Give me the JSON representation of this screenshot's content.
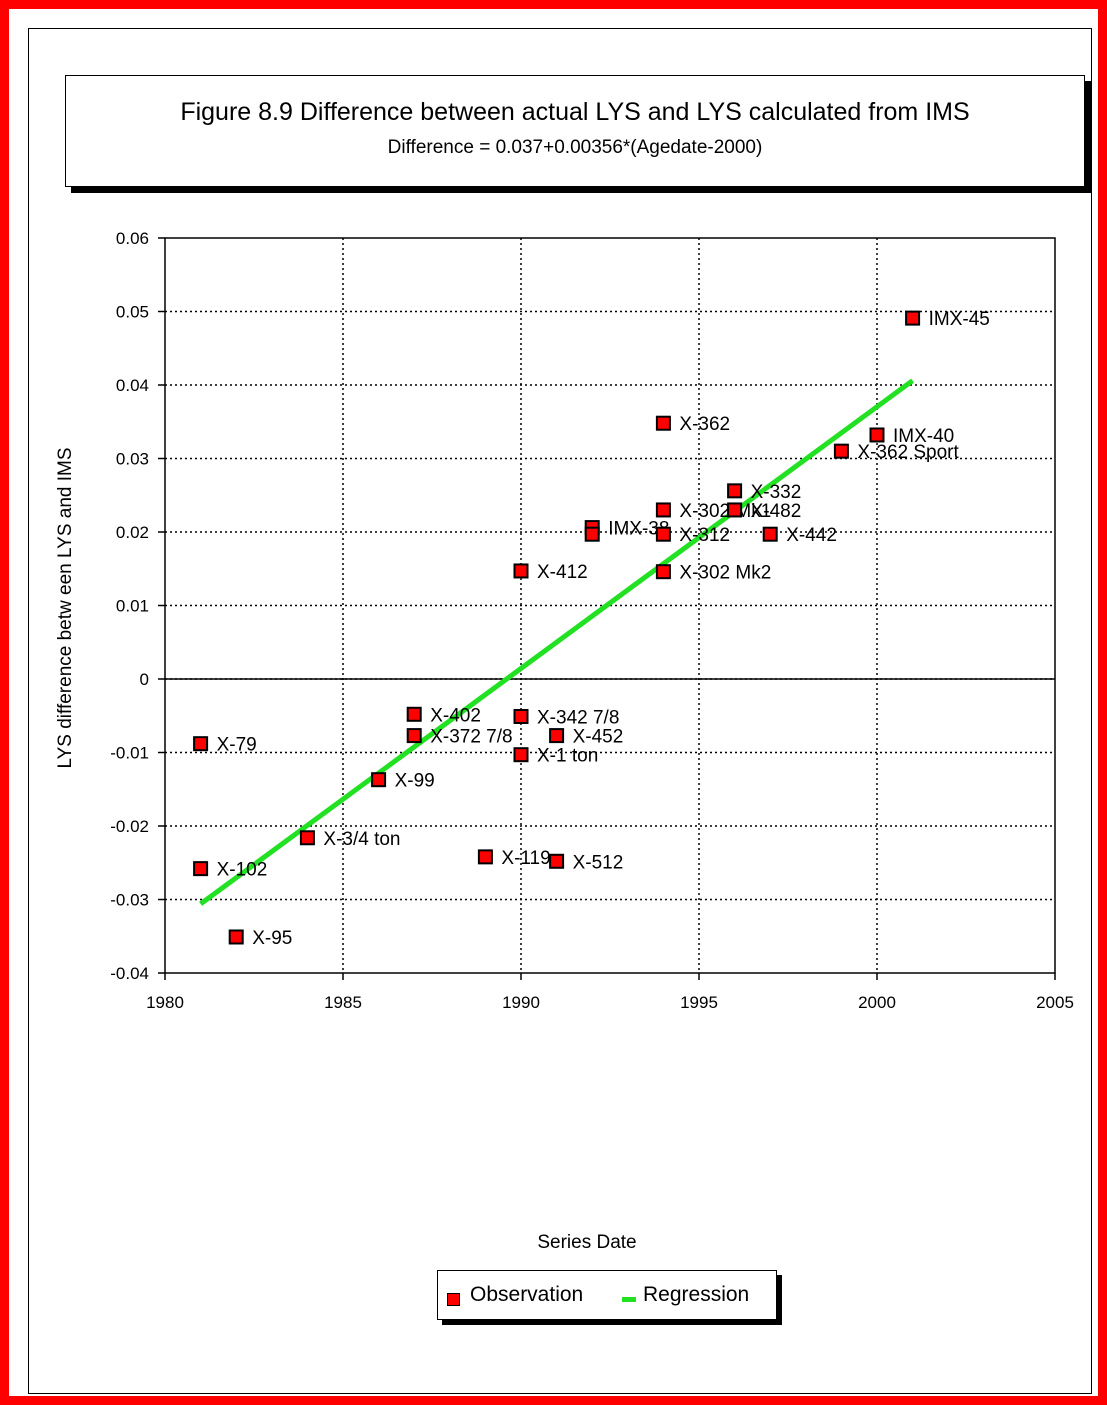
{
  "chart_data": {
    "type": "scatter",
    "title": "Figure 8.9 Difference between actual LYS and LYS calculated from IMS",
    "subtitle": "Difference = 0.037+0.00356*(Agedate-2000)",
    "xlabel": "Series Date",
    "ylabel": "LYS difference betw een LYS and IMS",
    "xlim": [
      1980,
      2005
    ],
    "ylim": [
      -0.04,
      0.06
    ],
    "xticks": [
      "1980",
      "1985",
      "1990",
      "1995",
      "2000",
      "2005"
    ],
    "yticks": [
      "0.06",
      "0.05",
      "0.04",
      "0.03",
      "0.02",
      "0.01",
      "0",
      "-0.01",
      "-0.02",
      "-0.03",
      "-0.04"
    ],
    "grid": "dotted",
    "legend_position": "bottom",
    "series": [
      {
        "name": "Observation",
        "color": "#ff0000",
        "marker": "square",
        "points": [
          {
            "x": 1981,
            "y": -0.0088,
            "label": "X-79"
          },
          {
            "x": 1981,
            "y": -0.0258,
            "label": "X-102"
          },
          {
            "x": 1982,
            "y": -0.0351,
            "label": "X-95"
          },
          {
            "x": 1984,
            "y": -0.0216,
            "label": "X-3/4 ton"
          },
          {
            "x": 1986,
            "y": -0.0137,
            "label": "X-99"
          },
          {
            "x": 1987,
            "y": -0.0048,
            "label": "X-402"
          },
          {
            "x": 1987,
            "y": -0.0077,
            "label": "X-372 7/8"
          },
          {
            "x": 1989,
            "y": -0.0242,
            "label": "X-119"
          },
          {
            "x": 1990,
            "y": -0.0051,
            "label": "X-342 7/8"
          },
          {
            "x": 1990,
            "y": -0.0103,
            "label": "X-1 ton"
          },
          {
            "x": 1990,
            "y": 0.0147,
            "label": "X-412"
          },
          {
            "x": 1991,
            "y": -0.0077,
            "label": "X-452"
          },
          {
            "x": 1991,
            "y": -0.0248,
            "label": "X-512"
          },
          {
            "x": 1992,
            "y": 0.0206,
            "label": "IMX-38"
          },
          {
            "x": 1992,
            "y": 0.0197,
            "label": ""
          },
          {
            "x": 1994,
            "y": 0.0348,
            "label": "X-362"
          },
          {
            "x": 1994,
            "y": 0.023,
            "label": "X-302 Mk1"
          },
          {
            "x": 1994,
            "y": 0.0197,
            "label": "X-312"
          },
          {
            "x": 1994,
            "y": 0.0146,
            "label": "X-302 Mk2"
          },
          {
            "x": 1996,
            "y": 0.0256,
            "label": "X-332"
          },
          {
            "x": 1996,
            "y": 0.023,
            "label": "X-482"
          },
          {
            "x": 1997,
            "y": 0.0197,
            "label": "X-442"
          },
          {
            "x": 1999,
            "y": 0.031,
            "label": "X-362 Sport"
          },
          {
            "x": 2000,
            "y": 0.0332,
            "label": "IMX-40"
          },
          {
            "x": 2001,
            "y": 0.0491,
            "label": "IMX-45"
          }
        ]
      },
      {
        "name": "Regression",
        "color": "#22e022",
        "type": "line",
        "x": [
          1981,
          2001
        ],
        "y": [
          -0.0306,
          0.0406
        ]
      }
    ]
  }
}
